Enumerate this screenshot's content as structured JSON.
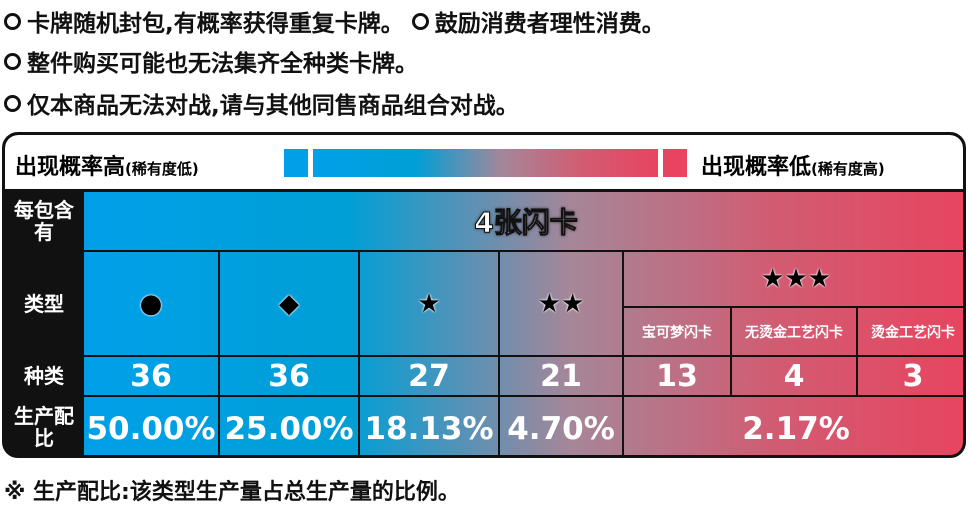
{
  "notes": [
    "卡牌随机封包,有概率获得重复卡牌。",
    "鼓励消费者理性消费。",
    "整件购买可能也无法集齐全种类卡牌。",
    "仅本商品无法对战,请与其他同售商品组合对战。"
  ],
  "legend": {
    "high_label": "出现概率高",
    "high_sub": "(稀有度低)",
    "low_label": "出现概率低",
    "low_sub": "(稀有度高)",
    "color_high": "#00a0e9",
    "color_low": "#e8445f"
  },
  "rows": {
    "per_pack": "每包含有",
    "type": "类型",
    "kinds": "种类",
    "ratio": "生产配比"
  },
  "per_pack_value": "4张闪卡",
  "columns": [
    {
      "symbol": "●",
      "count": "36",
      "ratio": "50.00%"
    },
    {
      "symbol": "◆",
      "count": "36",
      "ratio": "25.00%"
    },
    {
      "symbol": "★",
      "count": "27",
      "ratio": "18.13%"
    },
    {
      "symbol": "★★",
      "count": "21",
      "ratio": "4.70%"
    }
  ],
  "three_star": {
    "symbol": "★★★",
    "subtypes": [
      {
        "label": "宝可梦闪卡",
        "count": "13"
      },
      {
        "label": "无烫金工艺闪卡",
        "count": "4"
      },
      {
        "label": "烫金工艺闪卡",
        "count": "3"
      }
    ],
    "ratio": "2.17%"
  },
  "footnote": "※ 生产配比:该类型生产量占总生产量的比例。"
}
